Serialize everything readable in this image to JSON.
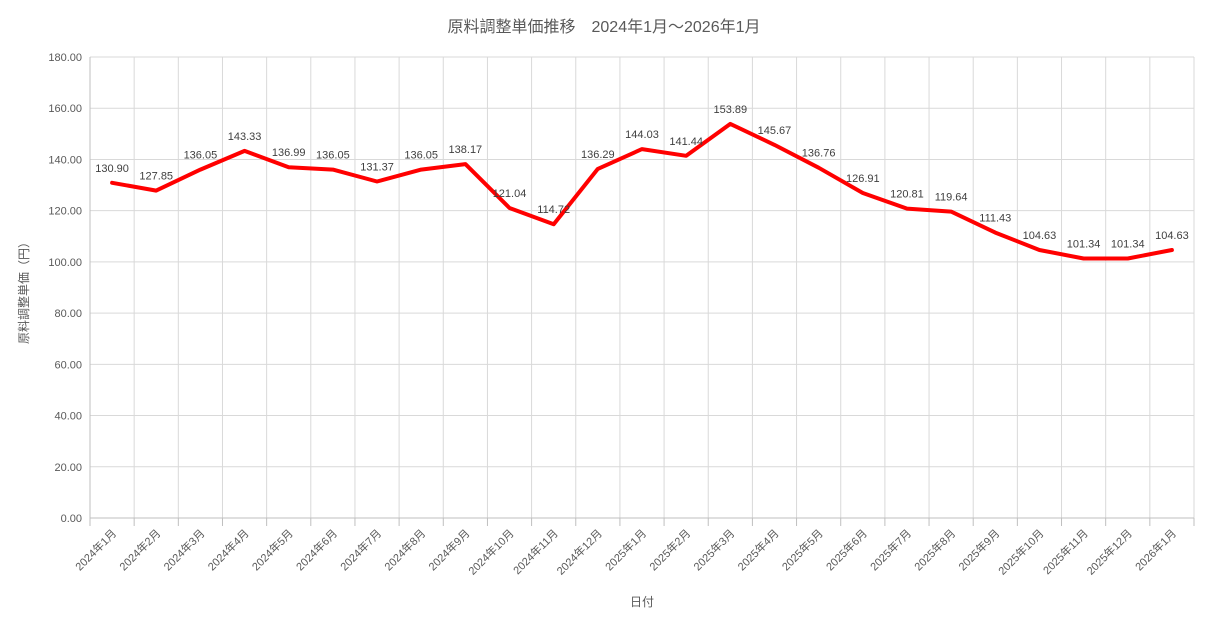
{
  "chart_data": {
    "type": "line",
    "title": "原料調整単価推移　2024年1月～2026年1月",
    "xlabel": "日付",
    "ylabel": "原料調整単価（円）",
    "categories": [
      "2024年1月",
      "2024年2月",
      "2024年3月",
      "2024年4月",
      "2024年5月",
      "2024年6月",
      "2024年7月",
      "2024年8月",
      "2024年9月",
      "2024年10月",
      "2024年11月",
      "2024年12月",
      "2025年1月",
      "2025年2月",
      "2025年3月",
      "2025年4月",
      "2025年5月",
      "2025年6月",
      "2025年7月",
      "2025年8月",
      "2025年9月",
      "2025年10月",
      "2025年11月",
      "2025年12月",
      "2026年1月"
    ],
    "values": [
      130.9,
      127.85,
      136.05,
      143.33,
      136.99,
      136.05,
      131.37,
      136.05,
      138.17,
      121.04,
      114.72,
      136.29,
      144.03,
      141.44,
      153.89,
      145.67,
      136.76,
      126.91,
      120.81,
      119.64,
      111.43,
      104.63,
      101.34,
      101.34,
      104.63
    ],
    "ylim": [
      0,
      180
    ],
    "ytick_step": 20,
    "ytick_decimals": 2,
    "grid": true,
    "legend_position": "none",
    "data_labels": true,
    "data_label_decimals": 2,
    "colors": {
      "line": "#FF0000",
      "gridline": "#D9D9D9",
      "axis_line": "#BFBFBF",
      "tick_label": "#595959",
      "data_label": "#3F3F3F",
      "title": "#595959",
      "background": "#FFFFFF"
    }
  }
}
